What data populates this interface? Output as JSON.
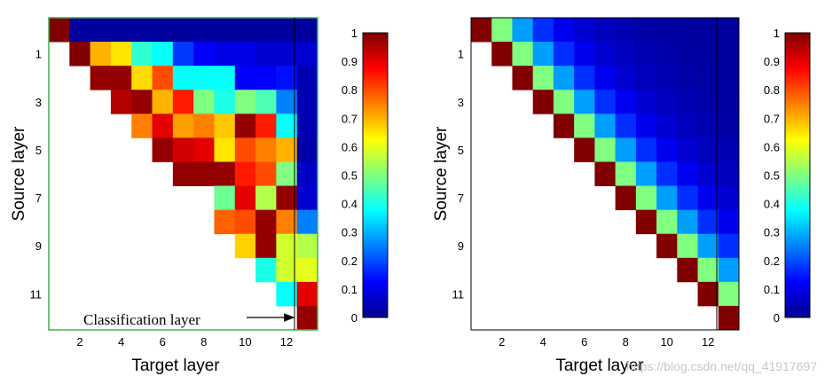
{
  "chart_data": [
    {
      "type": "heatmap",
      "xlabel": "Target layer",
      "ylabel": "Source layer",
      "x_ticks": [
        "2",
        "4",
        "6",
        "8",
        "10",
        "12"
      ],
      "y_ticks": [
        "1",
        "3",
        "5",
        "7",
        "9",
        "11"
      ],
      "annotation": "Classification layer",
      "colorbar": {
        "min": 0,
        "max": 1,
        "ticks": [
          "0",
          "0.1",
          "0.2",
          "0.3",
          "0.4",
          "0.5",
          "0.6",
          "0.7",
          "0.8",
          "0.9",
          "1"
        ]
      },
      "rows": [
        [
          1.0,
          0.03,
          0.03,
          0.03,
          0.03,
          0.03,
          0.03,
          0.03,
          0.03,
          0.03,
          0.03,
          0.03,
          0.03
        ],
        [
          null,
          1.0,
          0.7,
          0.65,
          0.42,
          0.38,
          0.18,
          0.12,
          0.1,
          0.1,
          0.08,
          0.08,
          0.08
        ],
        [
          null,
          null,
          0.98,
          0.98,
          0.66,
          0.8,
          0.38,
          0.38,
          0.38,
          0.12,
          0.12,
          0.14,
          0.05
        ],
        [
          null,
          null,
          null,
          0.95,
          0.98,
          0.7,
          0.85,
          0.5,
          0.4,
          0.5,
          0.45,
          0.25,
          0.05
        ],
        [
          null,
          null,
          null,
          null,
          0.75,
          0.9,
          0.72,
          0.75,
          0.68,
          0.98,
          0.85,
          0.38,
          0.05
        ],
        [
          null,
          null,
          null,
          null,
          null,
          0.98,
          0.92,
          0.9,
          0.65,
          0.8,
          0.75,
          0.7,
          0.04
        ],
        [
          null,
          null,
          null,
          null,
          null,
          null,
          0.98,
          0.98,
          0.98,
          0.85,
          0.8,
          0.5,
          0.07
        ],
        [
          null,
          null,
          null,
          null,
          null,
          null,
          null,
          null,
          0.48,
          0.9,
          0.55,
          0.98,
          0.08
        ],
        [
          null,
          null,
          null,
          null,
          null,
          null,
          null,
          null,
          0.78,
          0.8,
          0.98,
          0.75,
          0.25
        ],
        [
          null,
          null,
          null,
          null,
          null,
          null,
          null,
          null,
          null,
          0.67,
          0.98,
          0.58,
          0.55
        ],
        [
          null,
          null,
          null,
          null,
          null,
          null,
          null,
          null,
          null,
          null,
          0.4,
          0.58,
          0.6
        ],
        [
          null,
          null,
          null,
          null,
          null,
          null,
          null,
          null,
          null,
          null,
          null,
          0.38,
          0.9
        ],
        [
          null,
          null,
          null,
          null,
          null,
          null,
          null,
          null,
          null,
          null,
          null,
          null,
          0.98
        ]
      ]
    },
    {
      "type": "heatmap",
      "xlabel": "Target layer",
      "ylabel": "Source layer",
      "x_ticks": [
        "2",
        "4",
        "6",
        "8",
        "10",
        "12"
      ],
      "y_ticks": [
        "1",
        "3",
        "5",
        "7",
        "9",
        "11"
      ],
      "colorbar": {
        "min": 0,
        "max": 1,
        "ticks": [
          "0",
          "0.1",
          "0.2",
          "0.3",
          "0.4",
          "0.5",
          "0.6",
          "0.7",
          "0.8",
          "0.9",
          "1"
        ]
      },
      "decay": [
        1.0,
        0.5,
        0.28,
        0.17,
        0.11,
        0.08,
        0.06,
        0.05,
        0.04,
        0.035,
        0.03,
        0.03,
        0.03
      ]
    }
  ],
  "watermark": "https://blog.csdn.net/qq_41917697"
}
